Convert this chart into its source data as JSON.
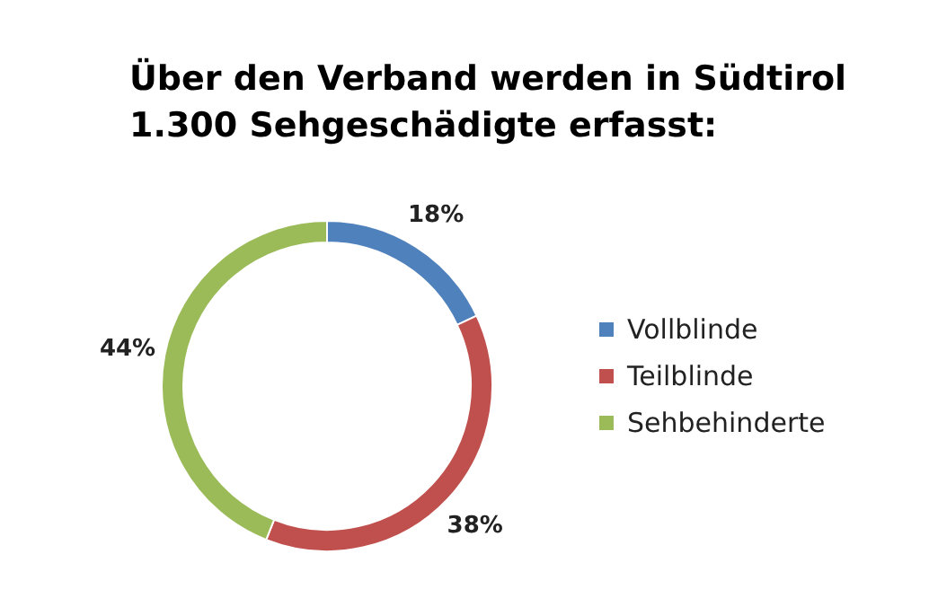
{
  "chart_data": {
    "type": "donut",
    "title": "Über den Verband werden in Südtirol\n1.300 Sehgeschädigte erfasst:",
    "categories": [
      "Vollblinde",
      "Teilblinde",
      "Sehbehinderte"
    ],
    "values": [
      18,
      38,
      44
    ],
    "colors": [
      "#4f81bd",
      "#c0504d",
      "#9bbb59"
    ],
    "value_labels": [
      "18%",
      "38%",
      "44%"
    ],
    "legend": "right"
  }
}
